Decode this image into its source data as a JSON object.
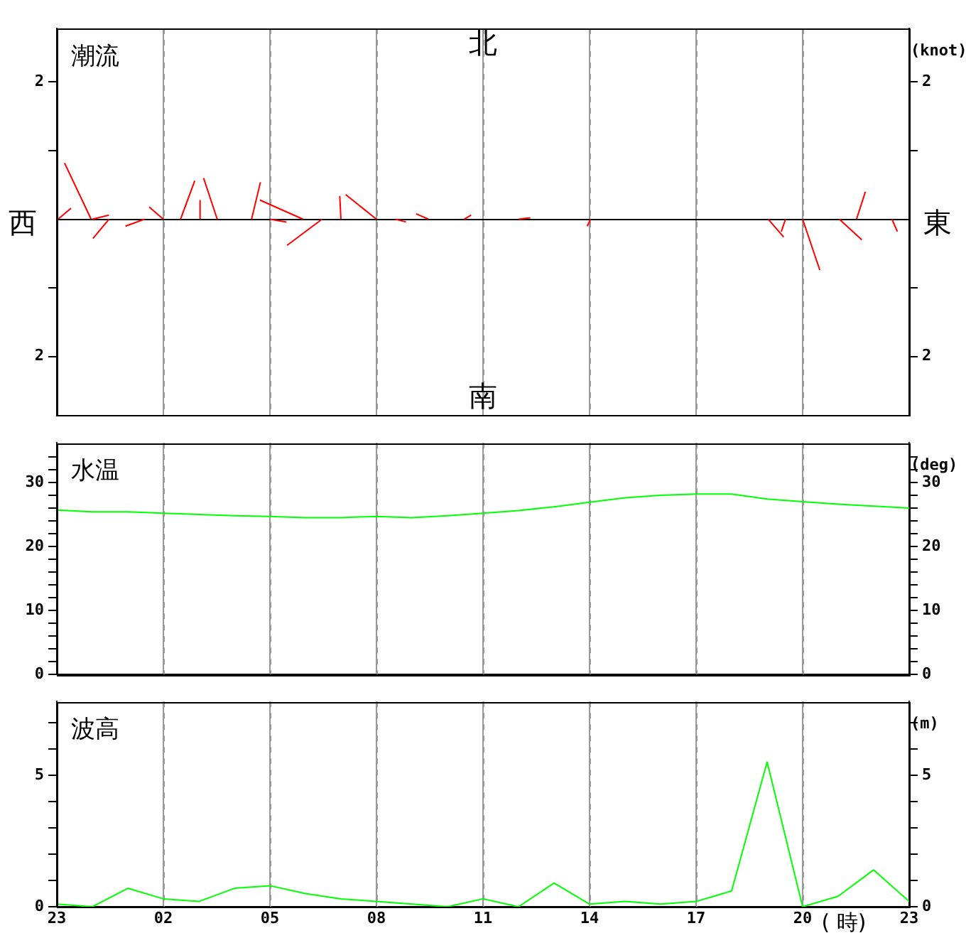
{
  "chart_data": [
    {
      "type": "line",
      "title": "潮流",
      "y2label": "(knot)",
      "annotations": [
        "北",
        "南",
        "西",
        "東"
      ],
      "xlim": [
        "--01-01T23:00",
        "--01-02T23:00"
      ],
      "xticks": [
        {
          "value": "--01-01T23:00",
          "label": "23"
        },
        {
          "value": "--01-02T02:00",
          "label": "02"
        },
        {
          "value": "--01-02T05:00",
          "label": "05"
        },
        {
          "value": "--01-02T08:00",
          "label": "08"
        },
        {
          "value": "--01-02T11:00",
          "label": "11"
        },
        {
          "value": "--01-02T14:00",
          "label": "14"
        },
        {
          "value": "--01-02T17:00",
          "label": "17"
        },
        {
          "value": "--01-02T20:00",
          "label": "20"
        },
        {
          "value": "--01-02T23:00",
          "label": "23"
        }
      ],
      "ylim": [
        -2.86,
        2.78
      ],
      "yticks": [
        {
          "value": -2,
          "label": "2"
        },
        {
          "value": -1,
          "label": null
        },
        {
          "value": 1,
          "label": null
        },
        {
          "value": 2,
          "label": "2"
        }
      ],
      "y2lim": [
        -2.86,
        2.78
      ],
      "y2ticks": [
        {
          "value": -2,
          "label": "2"
        },
        {
          "value": -1,
          "label": null
        },
        {
          "value": 1,
          "label": null
        },
        {
          "value": 2,
          "label": "2"
        }
      ],
      "ref_lines": [
        {
          "axis": "y",
          "value": 0,
          "color": "#000000"
        }
      ],
      "grid": "x",
      "tick_labels": "y",
      "marker": "none",
      "legend": false,
      "series": [
        {
          "color": "#ff0000",
          "x": [
            "--01-01T23:02",
            "--01-01T23:24"
          ],
          "values": [
            0,
            0.16
          ]
        },
        {
          "color": "#ff0000",
          "x": [
            "--01-01T23:58",
            "--01-01T23:13"
          ],
          "values": [
            0,
            0.82
          ]
        },
        {
          "color": "#ff0000",
          "x": [
            "--01-02T00:00",
            "--01-02T00:28"
          ],
          "values": [
            0,
            0.06
          ]
        },
        {
          "color": "#ff0000",
          "x": [
            "--01-02T00:28",
            "--01-02T00:01"
          ],
          "values": [
            0,
            -0.28
          ]
        },
        {
          "color": "#ff0000",
          "x": [
            "--01-02T01:28",
            "--01-02T00:56"
          ],
          "values": [
            0,
            -0.1
          ]
        },
        {
          "color": "#ff0000",
          "x": [
            "--01-02T02:00",
            "--01-02T01:36"
          ],
          "values": [
            0,
            0.18
          ]
        },
        {
          "color": "#ff0000",
          "x": [
            "--01-02T02:29",
            "--01-02T02:53"
          ],
          "values": [
            0,
            0.56
          ]
        },
        {
          "color": "#ff0000",
          "x": [
            "--01-02T03:02",
            "--01-02T03:02"
          ],
          "values": [
            0,
            0.28
          ]
        },
        {
          "color": "#ff0000",
          "x": [
            "--01-02T03:31",
            "--01-02T03:08"
          ],
          "values": [
            0,
            0.6
          ]
        },
        {
          "color": "#ff0000",
          "x": [
            "--01-02T04:29",
            "--01-02T04:44"
          ],
          "values": [
            0,
            0.54
          ]
        },
        {
          "color": "#ff0000",
          "x": [
            "--01-02T05:56",
            "--01-02T04:43"
          ],
          "values": [
            0,
            0.28
          ]
        },
        {
          "color": "#ff0000",
          "x": [
            "--01-02T05:00",
            "--01-02T05:28"
          ],
          "values": [
            0,
            -0.04
          ]
        },
        {
          "color": "#ff0000",
          "x": [
            "--01-02T06:28",
            "--01-02T05:29"
          ],
          "values": [
            0,
            -0.38
          ]
        },
        {
          "color": "#ff0000",
          "x": [
            "--01-02T07:00",
            "--01-02T06:58"
          ],
          "values": [
            0,
            0.34
          ]
        },
        {
          "color": "#ff0000",
          "x": [
            "--01-02T08:00",
            "--01-02T07:08"
          ],
          "values": [
            0,
            0.36
          ]
        },
        {
          "color": "#ff0000",
          "x": [
            "--01-02T08:32",
            "--01-02T08:50"
          ],
          "values": [
            0,
            -0.04
          ]
        },
        {
          "color": "#ff0000",
          "x": [
            "--01-02T09:28",
            "--01-02T09:07"
          ],
          "values": [
            0,
            0.08
          ]
        },
        {
          "color": "#ff0000",
          "x": [
            "--01-02T10:28",
            "--01-02T10:40"
          ],
          "values": [
            0,
            0.06
          ]
        },
        {
          "color": "#ff0000",
          "x": [
            "--01-02T12:00",
            "--01-02T12:20"
          ],
          "values": [
            0,
            0.02
          ]
        },
        {
          "color": "#ff0000",
          "x": [
            "--01-02T14:02",
            "--01-02T13:56"
          ],
          "values": [
            0,
            -0.1
          ]
        },
        {
          "color": "#ff0000",
          "x": [
            "--01-02T19:02",
            "--01-02T19:28"
          ],
          "values": [
            0,
            -0.26
          ]
        },
        {
          "color": "#ff0000",
          "x": [
            "--01-02T19:31",
            "--01-02T19:24"
          ],
          "values": [
            0,
            -0.18
          ]
        },
        {
          "color": "#ff0000",
          "x": [
            "--01-02T20:00",
            "--01-02T20:29"
          ],
          "values": [
            0,
            -0.74
          ]
        },
        {
          "color": "#ff0000",
          "x": [
            "--01-02T21:02",
            "--01-02T21:40"
          ],
          "values": [
            0,
            -0.3
          ]
        },
        {
          "color": "#ff0000",
          "x": [
            "--01-02T21:31",
            "--01-02T21:46"
          ],
          "values": [
            0,
            0.4
          ]
        },
        {
          "color": "#ff0000",
          "x": [
            "--01-02T22:31",
            "--01-02T22:40"
          ],
          "values": [
            0,
            -0.18
          ]
        }
      ]
    },
    {
      "type": "line",
      "title": "水温",
      "y2label": "(deg)",
      "xlim": [
        "--01-01T23:00",
        "--01-02T23:00"
      ],
      "xticks": [
        {
          "value": "--01-01T23:00",
          "label": "23"
        },
        {
          "value": "--01-02T02:00",
          "label": "02"
        },
        {
          "value": "--01-02T05:00",
          "label": "05"
        },
        {
          "value": "--01-02T08:00",
          "label": "08"
        },
        {
          "value": "--01-02T11:00",
          "label": "11"
        },
        {
          "value": "--01-02T14:00",
          "label": "14"
        },
        {
          "value": "--01-02T17:00",
          "label": "17"
        },
        {
          "value": "--01-02T20:00",
          "label": "20"
        },
        {
          "value": "--01-02T23:00",
          "label": "23"
        }
      ],
      "ylim": [
        0,
        36.2
      ],
      "yticks": [
        0,
        {
          "value": 2,
          "label": null
        },
        {
          "value": 4,
          "label": null
        },
        {
          "value": 6,
          "label": null
        },
        {
          "value": 8,
          "label": null
        },
        10,
        {
          "value": 12,
          "label": null
        },
        {
          "value": 14,
          "label": null
        },
        {
          "value": 16,
          "label": null
        },
        {
          "value": 18,
          "label": null
        },
        20,
        {
          "value": 22,
          "label": null
        },
        {
          "value": 24,
          "label": null
        },
        {
          "value": 26,
          "label": null
        },
        {
          "value": 28,
          "label": null
        },
        30,
        {
          "value": 32,
          "label": null
        },
        {
          "value": 34,
          "label": null
        }
      ],
      "y2lim": [
        0,
        36.2
      ],
      "y2ticks": [
        0,
        {
          "value": 2,
          "label": null
        },
        {
          "value": 4,
          "label": null
        },
        {
          "value": 6,
          "label": null
        },
        {
          "value": 8,
          "label": null
        },
        10,
        {
          "value": 12,
          "label": null
        },
        {
          "value": 14,
          "label": null
        },
        {
          "value": 16,
          "label": null
        },
        {
          "value": 18,
          "label": null
        },
        20,
        {
          "value": 22,
          "label": null
        },
        {
          "value": 24,
          "label": null
        },
        {
          "value": 26,
          "label": null
        },
        {
          "value": 28,
          "label": null
        },
        30,
        {
          "value": 32,
          "label": null
        },
        {
          "value": 34,
          "label": null
        }
      ],
      "grid": "x",
      "tick_labels": "y",
      "marker": "none",
      "legend": false,
      "color": "#00ff00",
      "x": [
        "--01-01T23:00",
        "--01-02T00:00",
        "--01-02T01:00",
        "--01-02T02:00",
        "--01-02T03:00",
        "--01-02T04:00",
        "--01-02T05:00",
        "--01-02T06:00",
        "--01-02T07:00",
        "--01-02T08:00",
        "--01-02T09:00",
        "--01-02T10:00",
        "--01-02T11:00",
        "--01-02T12:00",
        "--01-02T13:00",
        "--01-02T14:00",
        "--01-02T15:00",
        "--01-02T16:00",
        "--01-02T17:00",
        "--01-02T18:00",
        "--01-02T19:00",
        "--01-02T20:00",
        "--01-02T21:00",
        "--01-02T22:00",
        "--01-02T23:00"
      ],
      "values": [
        25.7,
        25.4,
        25.4,
        25.2,
        25.0,
        24.8,
        24.7,
        24.5,
        24.5,
        24.7,
        24.5,
        24.8,
        25.2,
        25.6,
        26.2,
        26.9,
        27.6,
        28.0,
        28.2,
        28.2,
        27.4,
        27.0,
        26.6,
        26.3,
        26.0
      ]
    },
    {
      "type": "line",
      "title": "波高",
      "y2label": "(m)",
      "xlabel": "( 時)",
      "xlim": [
        "--01-01T23:00",
        "--01-02T23:00"
      ],
      "xticks": [
        {
          "value": "--01-01T23:00",
          "label": "23"
        },
        {
          "value": "--01-02T02:00",
          "label": "02"
        },
        {
          "value": "--01-02T05:00",
          "label": "05"
        },
        {
          "value": "--01-02T08:00",
          "label": "08"
        },
        {
          "value": "--01-02T11:00",
          "label": "11"
        },
        {
          "value": "--01-02T14:00",
          "label": "14"
        },
        {
          "value": "--01-02T17:00",
          "label": "17"
        },
        {
          "value": "--01-02T20:00",
          "label": "20"
        },
        {
          "value": "--01-02T23:00",
          "label": "23"
        }
      ],
      "ylim": [
        0,
        7.8
      ],
      "yticks": [
        0,
        {
          "value": 1,
          "label": null
        },
        {
          "value": 2,
          "label": null
        },
        {
          "value": 3,
          "label": null
        },
        {
          "value": 4,
          "label": null
        },
        5,
        {
          "value": 6,
          "label": null
        },
        {
          "value": 7,
          "label": null
        }
      ],
      "y2lim": [
        0,
        7.8
      ],
      "y2ticks": [
        0,
        {
          "value": 1,
          "label": null
        },
        {
          "value": 2,
          "label": null
        },
        {
          "value": 3,
          "label": null
        },
        {
          "value": 4,
          "label": null
        },
        5,
        {
          "value": 6,
          "label": null
        },
        {
          "value": 7,
          "label": null
        }
      ],
      "grid": "x",
      "marker": "none",
      "legend": false,
      "color": "#00ff00",
      "x": [
        "--01-01T23:00",
        "--01-02T00:00",
        "--01-02T01:00",
        "--01-02T02:00",
        "--01-02T03:00",
        "--01-02T04:00",
        "--01-02T05:00",
        "--01-02T06:00",
        "--01-02T07:00",
        "--01-02T08:00",
        "--01-02T09:00",
        "--01-02T10:00",
        "--01-02T11:00",
        "--01-02T12:00",
        "--01-02T13:00",
        "--01-02T14:00",
        "--01-02T15:00",
        "--01-02T16:00",
        "--01-02T17:00",
        "--01-02T18:00",
        "--01-02T19:00",
        "--01-02T20:00",
        "--01-02T21:00",
        "--01-02T22:00",
        "--01-02T23:00"
      ],
      "values": [
        0.1,
        0.0,
        0.7,
        0.3,
        0.2,
        0.7,
        0.8,
        0.5,
        0.3,
        0.2,
        0.1,
        0.0,
        0.3,
        0.0,
        0.9,
        0.1,
        0.2,
        0.1,
        0.2,
        0.6,
        5.5,
        0.0,
        0.4,
        1.4,
        0.2
      ]
    }
  ]
}
